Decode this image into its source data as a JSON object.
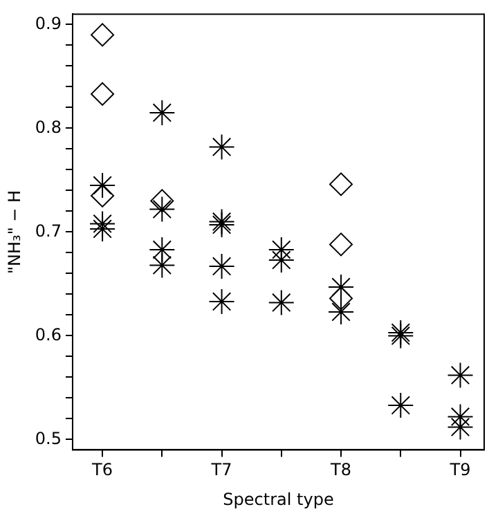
{
  "chart_data": {
    "type": "scatter",
    "xlabel": "Spectral type",
    "ylabel": "\"NH₃\" − H",
    "categories": [
      "T6",
      null,
      "T7",
      null,
      "T8",
      null,
      "T9"
    ],
    "ylim": [
      0.49,
      0.91
    ],
    "yticks": [
      0.5,
      {
        "value": 0.52,
        "label": null
      },
      {
        "value": 0.54,
        "label": null
      },
      {
        "value": 0.56,
        "label": null
      },
      {
        "value": 0.58,
        "label": null
      },
      0.6,
      {
        "value": 0.62,
        "label": null
      },
      {
        "value": 0.64,
        "label": null
      },
      {
        "value": 0.66,
        "label": null
      },
      {
        "value": 0.68,
        "label": null
      },
      0.7,
      {
        "value": 0.72,
        "label": null
      },
      {
        "value": 0.74,
        "label": null
      },
      {
        "value": 0.76,
        "label": null
      },
      {
        "value": 0.78,
        "label": null
      },
      0.8,
      {
        "value": 0.82,
        "label": null
      },
      {
        "value": 0.84,
        "label": null
      },
      {
        "value": 0.86,
        "label": null
      },
      {
        "value": 0.88,
        "label": null
      },
      0.9
    ],
    "grid": false,
    "legend": false,
    "series": [
      {
        "marker": "diamond",
        "color": "#000000",
        "values": [
          0.89,
          0.73,
          null,
          null,
          0.746,
          null,
          null
        ]
      },
      {
        "marker": "diamond",
        "color": "#000000",
        "values": [
          0.833,
          null,
          null,
          null,
          0.688,
          null,
          null
        ]
      },
      {
        "marker": "diamond",
        "color": "#000000",
        "values": [
          0.735,
          null,
          null,
          null,
          0.636,
          null,
          null
        ]
      },
      {
        "marker": "cross",
        "color": "#000000",
        "values": [
          0.745,
          0.815,
          0.782,
          0.683,
          0.647,
          0.603,
          0.562
        ]
      },
      {
        "marker": "cross",
        "color": "#000000",
        "values": [
          0.708,
          0.722,
          0.71,
          0.673,
          0.623,
          0.6,
          0.522
        ]
      },
      {
        "marker": "cross",
        "color": "#000000",
        "values": [
          0.703,
          0.683,
          0.707,
          0.632,
          null,
          0.533,
          0.512
        ]
      },
      {
        "marker": "cross",
        "color": "#000000",
        "values": [
          null,
          0.668,
          0.667,
          null,
          null,
          null,
          null
        ]
      },
      {
        "marker": "cross",
        "color": "#000000",
        "values": [
          null,
          null,
          0.633,
          null,
          null,
          null,
          null
        ]
      }
    ]
  }
}
